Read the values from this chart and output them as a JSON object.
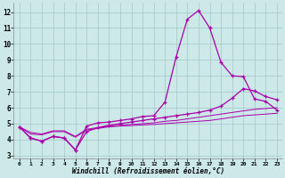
{
  "xlabel": "Windchill (Refroidissement éolien,°C)",
  "background_color": "#cce8e8",
  "grid_color": "#a0c8c8",
  "line_color": "#aa00aa",
  "xlim": [
    -0.5,
    23.5
  ],
  "ylim": [
    2.8,
    12.6
  ],
  "yticks": [
    3,
    4,
    5,
    6,
    7,
    8,
    9,
    10,
    11,
    12
  ],
  "xticks": [
    0,
    1,
    2,
    3,
    4,
    5,
    6,
    7,
    8,
    9,
    10,
    11,
    12,
    13,
    14,
    15,
    16,
    17,
    18,
    19,
    20,
    21,
    22,
    23
  ],
  "line1_x": [
    0,
    1,
    2,
    3,
    4,
    5,
    6,
    7,
    8,
    9,
    10,
    11,
    12,
    13,
    14,
    15,
    16,
    17,
    18,
    19,
    20,
    21,
    22,
    23
  ],
  "line1_y": [
    4.8,
    4.1,
    3.9,
    4.2,
    4.1,
    3.35,
    4.85,
    5.05,
    5.1,
    5.2,
    5.3,
    5.45,
    5.5,
    6.35,
    9.2,
    11.55,
    12.1,
    11.0,
    8.85,
    8.0,
    7.95,
    6.55,
    6.4,
    5.85
  ],
  "line2_x": [
    0,
    1,
    2,
    3,
    4,
    5,
    6,
    7,
    8,
    9,
    10,
    11,
    12,
    13,
    14,
    15,
    16,
    17,
    18,
    19,
    20,
    21,
    22,
    23
  ],
  "line2_y": [
    4.8,
    4.1,
    3.9,
    4.2,
    4.1,
    3.35,
    4.5,
    4.75,
    4.9,
    5.0,
    5.1,
    5.2,
    5.3,
    5.4,
    5.5,
    5.6,
    5.7,
    5.85,
    6.1,
    6.6,
    7.2,
    7.05,
    6.7,
    6.5
  ],
  "line3_x": [
    0,
    1,
    2,
    3,
    4,
    5,
    6,
    7,
    8,
    9,
    10,
    11,
    12,
    13,
    14,
    15,
    16,
    17,
    18,
    19,
    20,
    21,
    22,
    23
  ],
  "line3_y": [
    4.8,
    4.45,
    4.35,
    4.55,
    4.55,
    4.2,
    4.65,
    4.75,
    4.85,
    4.9,
    4.95,
    5.0,
    5.05,
    5.15,
    5.2,
    5.3,
    5.4,
    5.5,
    5.6,
    5.7,
    5.8,
    5.9,
    5.95,
    6.0
  ],
  "line4_x": [
    0,
    1,
    2,
    3,
    4,
    5,
    6,
    7,
    8,
    9,
    10,
    11,
    12,
    13,
    14,
    15,
    16,
    17,
    18,
    19,
    20,
    21,
    22,
    23
  ],
  "line4_y": [
    4.8,
    4.35,
    4.3,
    4.5,
    4.5,
    4.15,
    4.6,
    4.7,
    4.8,
    4.85,
    4.88,
    4.92,
    4.95,
    5.0,
    5.05,
    5.1,
    5.15,
    5.2,
    5.3,
    5.4,
    5.5,
    5.55,
    5.6,
    5.65
  ]
}
